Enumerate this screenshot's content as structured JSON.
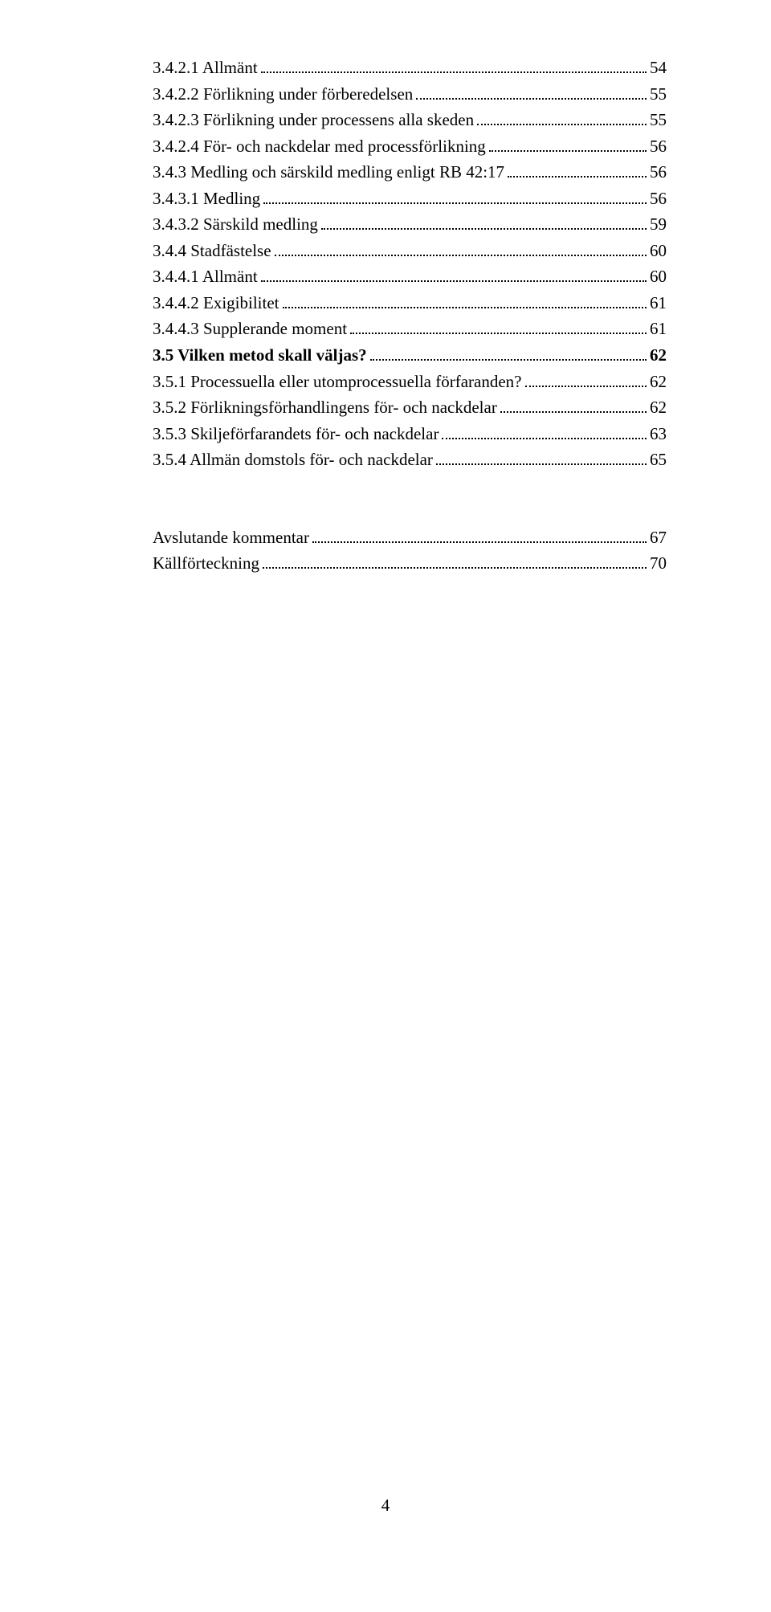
{
  "toc": [
    {
      "label": "3.4.2.1 Allmänt",
      "page": "54",
      "bold": false
    },
    {
      "label": "3.4.2.2 Förlikning under förberedelsen",
      "page": "55",
      "bold": false
    },
    {
      "label": "3.4.2.3 Förlikning under processens alla skeden",
      "page": "55",
      "bold": false
    },
    {
      "label": "3.4.2.4 För- och nackdelar med processförlikning",
      "page": "56",
      "bold": false
    },
    {
      "label": "3.4.3 Medling och särskild medling enligt RB 42:17",
      "page": "56",
      "bold": false
    },
    {
      "label": "3.4.3.1 Medling",
      "page": "56",
      "bold": false
    },
    {
      "label": "3.4.3.2 Särskild medling",
      "page": "59",
      "bold": false
    },
    {
      "label": "3.4.4 Stadfästelse",
      "page": "60",
      "bold": false
    },
    {
      "label": "3.4.4.1 Allmänt",
      "page": "60",
      "bold": false
    },
    {
      "label": "3.4.4.2 Exigibilitet",
      "page": "61",
      "bold": false
    },
    {
      "label": "3.4.4.3 Supplerande moment",
      "page": "61",
      "bold": false
    },
    {
      "label": "3.5 Vilken metod skall väljas?",
      "page": "62",
      "bold": true
    },
    {
      "label": "3.5.1 Processuella eller utomprocessuella förfaranden?",
      "page": "62",
      "bold": false
    },
    {
      "label": "3.5.2 Förlikningsförhandlingens för- och nackdelar",
      "page": "62",
      "bold": false
    },
    {
      "label": "3.5.3 Skiljeförfarandets för- och nackdelar",
      "page": "63",
      "bold": false
    },
    {
      "label": "3.5.4 Allmän domstols för- och nackdelar",
      "page": "65",
      "bold": false
    }
  ],
  "toc2": [
    {
      "label": "Avslutande kommentar",
      "page": "67",
      "bold": false
    },
    {
      "label": "Källförteckning",
      "page": "70",
      "bold": false
    }
  ],
  "page_number": "4"
}
